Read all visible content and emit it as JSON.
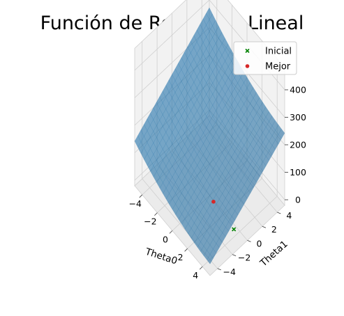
{
  "chart_data": {
    "type": "surface3d",
    "title": "Función de Regresion Lineal",
    "xlabel": "Theta0",
    "ylabel": "Theta1",
    "zlabel": "",
    "xlim": [
      -5,
      5
    ],
    "ylim": [
      -5,
      5
    ],
    "zlim": [
      -20,
      480
    ],
    "x_ticks": [
      "−4",
      "−2",
      "0",
      "2",
      "4"
    ],
    "y_ticks": [
      "−4",
      "−2",
      "0",
      "2",
      "4"
    ],
    "z_ticks": [
      "0",
      "100",
      "200",
      "300",
      "400"
    ],
    "surface": {
      "name": "",
      "color": "#1f77b4",
      "opacity": 0.6,
      "corners": [
        {
          "x": -5,
          "y": -5,
          "z": 100
        },
        {
          "x": 5,
          "y": -5,
          "z": 10
        },
        {
          "x": -5,
          "y": 5,
          "z": 330
        },
        {
          "x": 5,
          "y": 5,
          "z": 230
        }
      ]
    },
    "points": [
      {
        "name": "Inicial",
        "x": 4.2,
        "y": -1.0,
        "z": 20,
        "marker": "x",
        "color": "#008000"
      },
      {
        "name": "Mejor",
        "x": 1.0,
        "y": -0.5,
        "z": 3,
        "marker": "o",
        "color": "#d62728"
      }
    ],
    "legend": {
      "position": "top-right",
      "entries": [
        {
          "label": "Inicial",
          "marker": "x",
          "color": "#008000"
        },
        {
          "label": "Mejor",
          "marker": "o",
          "color": "#d62728"
        }
      ]
    },
    "grid": true
  }
}
